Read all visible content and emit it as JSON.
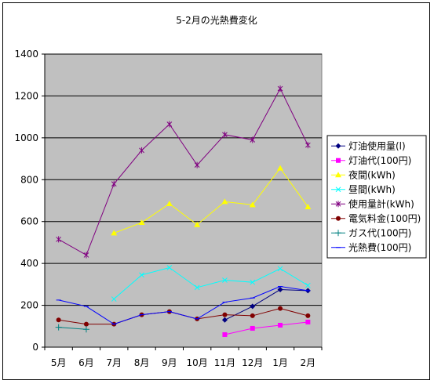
{
  "chart_data": {
    "type": "line",
    "title": "5-2月の光熱費変化",
    "xlabel": "",
    "ylabel": "",
    "categories": [
      "5月",
      "6月",
      "7月",
      "8月",
      "9月",
      "10月",
      "11月",
      "12月",
      "1月",
      "2月"
    ],
    "ylim": [
      0,
      1400
    ],
    "yticks": [
      0,
      200,
      400,
      600,
      800,
      1000,
      1200,
      1400
    ],
    "grid": true,
    "legend_position": "right",
    "plot_background": "#c0c0c0",
    "series": [
      {
        "name": "灯油使用量(l)",
        "color": "#000080",
        "marker": "diamond",
        "values": [
          null,
          null,
          null,
          null,
          null,
          null,
          130,
          195,
          275,
          270
        ]
      },
      {
        "name": "灯油代(100円)",
        "color": "#ff00ff",
        "marker": "square",
        "values": [
          null,
          null,
          null,
          null,
          null,
          null,
          60,
          90,
          105,
          120
        ]
      },
      {
        "name": "夜間(kWh)",
        "color": "#ffff00",
        "marker": "triangle",
        "values": [
          null,
          null,
          545,
          595,
          685,
          585,
          695,
          680,
          855,
          670
        ]
      },
      {
        "name": "昼間(kWh)",
        "color": "#00ffff",
        "marker": "x",
        "values": [
          null,
          null,
          230,
          345,
          380,
          285,
          320,
          310,
          375,
          295
        ]
      },
      {
        "name": "使用量計(kWh)",
        "color": "#800080",
        "marker": "star",
        "values": [
          515,
          440,
          780,
          940,
          1065,
          870,
          1015,
          990,
          1235,
          965
        ]
      },
      {
        "name": "電気料金(100円)",
        "color": "#800000",
        "marker": "circle",
        "values": [
          130,
          110,
          110,
          155,
          170,
          135,
          155,
          150,
          185,
          150
        ]
      },
      {
        "name": "ガス代(100円)",
        "color": "#008080",
        "marker": "plus",
        "values": [
          95,
          85,
          null,
          null,
          null,
          null,
          null,
          null,
          null,
          null
        ]
      },
      {
        "name": "光熱費(100円)",
        "color": "#0000ff",
        "marker": "dash",
        "values": [
          225,
          195,
          110,
          155,
          170,
          135,
          215,
          235,
          290,
          270
        ]
      }
    ]
  }
}
